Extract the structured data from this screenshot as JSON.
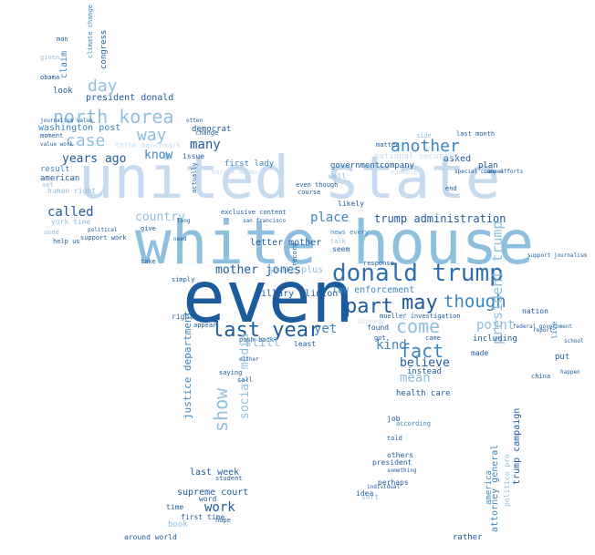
{
  "colors": {
    "background": "#ffffff",
    "dark": "#1c5b9e",
    "mid": "#3a86c0",
    "light": "#8fbfdf",
    "pale": "#c6dbef"
  },
  "words": [
    {
      "text": "white house",
      "color": "#8fbfdf"
    },
    {
      "text": "united state",
      "color": "#c6dbef"
    },
    {
      "text": "even",
      "color": "#1c5b9e"
    },
    {
      "text": "donald trump",
      "color": "#2f6fae"
    },
    {
      "text": "north korea",
      "color": "#8fbfdf"
    },
    {
      "text": "last year",
      "color": "#1c5b9e"
    },
    {
      "text": "part",
      "color": "#1c5b9e"
    },
    {
      "text": "may",
      "color": "#1c5b9e"
    },
    {
      "text": "though",
      "color": "#3a86c0"
    },
    {
      "text": "come",
      "color": "#8fbfdf"
    },
    {
      "text": "fact",
      "color": "#3a86c0"
    },
    {
      "text": "another",
      "color": "#3a86c0"
    },
    {
      "text": "way",
      "color": "#8fbfdf"
    },
    {
      "text": "case",
      "color": "#8fbfdf"
    },
    {
      "text": "day",
      "color": "#8fbfdf"
    },
    {
      "text": "show",
      "color": "#8fbfdf"
    },
    {
      "text": "trump administration",
      "color": "#1c5b9e"
    },
    {
      "text": "president trump",
      "color": "#8fbfdf"
    },
    {
      "text": "years ago",
      "color": "#1c5b9e"
    },
    {
      "text": "called",
      "color": "#1c5b9e"
    },
    {
      "text": "country",
      "color": "#8fbfdf"
    },
    {
      "text": "know",
      "color": "#3a86c0"
    },
    {
      "text": "many",
      "color": "#1c5b9e"
    },
    {
      "text": "mother jones",
      "color": "#1c5b9e"
    },
    {
      "text": "place",
      "color": "#3a86c0"
    },
    {
      "text": "yet",
      "color": "#3a86c0"
    },
    {
      "text": "kind",
      "color": "#3a86c0"
    },
    {
      "text": "believe",
      "color": "#1c5b9e"
    },
    {
      "text": "mean",
      "color": "#8fbfdf"
    },
    {
      "text": "point",
      "color": "#8fbfdf"
    },
    {
      "text": "work",
      "color": "#1c5b9e"
    },
    {
      "text": "still",
      "color": "#8fbfdf"
    },
    {
      "text": "social media",
      "color": "#8fbfdf"
    },
    {
      "text": "justice department",
      "color": "#3a86c0"
    },
    {
      "text": "supreme court",
      "color": "#1c5b9e"
    },
    {
      "text": "last week",
      "color": "#1c5b9e"
    },
    {
      "text": "president donald",
      "color": "#1c5b9e"
    },
    {
      "text": "washington post",
      "color": "#3a86c0"
    },
    {
      "text": "american",
      "color": "#1c5b9e"
    },
    {
      "text": "result",
      "color": "#3a86c0"
    },
    {
      "text": "hillary clinton",
      "color": "#1c5b9e"
    },
    {
      "text": "letter mother",
      "color": "#1c5b9e"
    },
    {
      "text": "law enforcement",
      "color": "#3a86c0"
    },
    {
      "text": "state plus",
      "color": "#8fbfdf"
    },
    {
      "text": "first lady",
      "color": "#3a86c0"
    },
    {
      "text": "government",
      "color": "#1c5b9e"
    },
    {
      "text": "company",
      "color": "#1c5b9e"
    },
    {
      "text": "asked",
      "color": "#1c5b9e"
    },
    {
      "text": "plan",
      "color": "#1c5b9e"
    },
    {
      "text": "national security",
      "color": "#c6dbef"
    },
    {
      "text": "trump campaign",
      "color": "#1c5b9e"
    },
    {
      "text": "attorney general",
      "color": "#3a86c0"
    },
    {
      "text": "health care",
      "color": "#1c5b9e"
    },
    {
      "text": "including",
      "color": "#1c5b9e"
    },
    {
      "text": "made",
      "color": "#1c5b9e"
    },
    {
      "text": "nation",
      "color": "#1c5b9e"
    },
    {
      "text": "put",
      "color": "#1c5b9e"
    },
    {
      "text": "live",
      "color": "#3a86c0"
    },
    {
      "text": "instead",
      "color": "#1c5b9e"
    },
    {
      "text": "mueller investigation",
      "color": "#1c5b9e"
    },
    {
      "text": "around world",
      "color": "#1c5b9e"
    },
    {
      "text": "first time",
      "color": "#1c5b9e"
    },
    {
      "text": "book",
      "color": "#8fbfdf"
    },
    {
      "text": "word",
      "color": "#1c5b9e"
    },
    {
      "text": "time",
      "color": "#1c5b9e"
    },
    {
      "text": "rather",
      "color": "#1c5b9e"
    },
    {
      "text": "others",
      "color": "#1c5b9e"
    },
    {
      "text": "president",
      "color": "#1c5b9e"
    },
    {
      "text": "perhaps",
      "color": "#1c5b9e"
    },
    {
      "text": "idea",
      "color": "#1c5b9e"
    },
    {
      "text": "sort",
      "color": "#8fbfdf"
    },
    {
      "text": "job",
      "color": "#1c5b9e"
    },
    {
      "text": "according",
      "color": "#3a86c0"
    },
    {
      "text": "found",
      "color": "#1c5b9e"
    },
    {
      "text": "got",
      "color": "#1c5b9e"
    },
    {
      "text": "came",
      "color": "#1c5b9e"
    },
    {
      "text": "least",
      "color": "#1c5b9e"
    },
    {
      "text": "right",
      "color": "#1c5b9e"
    },
    {
      "text": "simply",
      "color": "#1c5b9e"
    },
    {
      "text": "appear",
      "color": "#1c5b9e"
    },
    {
      "text": "take",
      "color": "#1c5b9e"
    },
    {
      "text": "give",
      "color": "#1c5b9e"
    },
    {
      "text": "saying",
      "color": "#1c5b9e"
    },
    {
      "text": "student",
      "color": "#1c5b9e"
    },
    {
      "text": "hope",
      "color": "#1c5b9e"
    },
    {
      "text": "york time",
      "color": "#8fbfdf"
    },
    {
      "text": "used",
      "color": "#8fbfdf"
    },
    {
      "text": "human right",
      "color": "#8fbfdf"
    },
    {
      "text": "support work",
      "color": "#1c5b9e"
    },
    {
      "text": "think benchmark",
      "color": "#c6dbef"
    },
    {
      "text": "issue",
      "color": "#1c5b9e"
    },
    {
      "text": "democrat",
      "color": "#1c5b9e"
    },
    {
      "text": "change",
      "color": "#1c5b9e"
    },
    {
      "text": "look",
      "color": "#1c5b9e"
    },
    {
      "text": "claim",
      "color": "#3a86c0"
    },
    {
      "text": "congress",
      "color": "#1c5b9e"
    },
    {
      "text": "climate change",
      "color": "#3a86c0"
    },
    {
      "text": "obama",
      "color": "#1c5b9e"
    },
    {
      "text": "man",
      "color": "#1c5b9e"
    },
    {
      "text": "given",
      "color": "#8fbfdf"
    },
    {
      "text": "well",
      "color": "#8fbfdf"
    },
    {
      "text": "even though",
      "color": "#1c5b9e"
    },
    {
      "text": "course",
      "color": "#1c5b9e"
    },
    {
      "text": "likely",
      "color": "#1c5b9e"
    },
    {
      "text": "seem",
      "color": "#1c5b9e"
    },
    {
      "text": "news every",
      "color": "#3a86c0"
    },
    {
      "text": "talk",
      "color": "#8fbfdf"
    },
    {
      "text": "matter",
      "color": "#1c5b9e"
    },
    {
      "text": "side",
      "color": "#8fbfdf"
    },
    {
      "text": "last month",
      "color": "#1c5b9e"
    },
    {
      "text": "end",
      "color": "#1c5b9e"
    },
    {
      "text": "support journalism",
      "color": "#1c5b9e"
    },
    {
      "text": "china",
      "color": "#1c5b9e"
    },
    {
      "text": "told",
      "color": "#1c5b9e"
    },
    {
      "text": "individual",
      "color": "#1c5b9e"
    },
    {
      "text": "something",
      "color": "#1c5b9e"
    },
    {
      "text": "america",
      "color": "#3a86c0"
    },
    {
      "text": "politico pro",
      "color": "#8fbfdf"
    },
    {
      "text": "response",
      "color": "#1c5b9e"
    },
    {
      "text": "call",
      "color": "#1c5b9e"
    },
    {
      "text": "push back",
      "color": "#1c5b9e"
    },
    {
      "text": "either",
      "color": "#1c5b9e"
    },
    {
      "text": "record",
      "color": "#1c5b9e"
    },
    {
      "text": "exclusive content",
      "color": "#1c5b9e"
    },
    {
      "text": "barack obama",
      "color": "#c6dbef"
    },
    {
      "text": "san francisco",
      "color": "#1c5b9e"
    },
    {
      "text": "actually",
      "color": "#1c5b9e"
    },
    {
      "text": "long",
      "color": "#1c5b9e"
    },
    {
      "text": "need",
      "color": "#1c5b9e"
    },
    {
      "text": "political",
      "color": "#1c5b9e"
    },
    {
      "text": "help us",
      "color": "#1c5b9e"
    },
    {
      "text": "set",
      "color": "#8fbfdf"
    },
    {
      "text": "moment",
      "color": "#1c5b9e"
    },
    {
      "text": "journalism value",
      "color": "#1c5b9e"
    },
    {
      "text": "value work",
      "color": "#1c5b9e"
    },
    {
      "text": "otten",
      "color": "#1c5b9e"
    },
    {
      "text": "already",
      "color": "#c6dbef"
    },
    {
      "text": "example",
      "color": "#c6dbef"
    },
    {
      "text": "special counsel",
      "color": "#1c5b9e"
    },
    {
      "text": "camp efforts",
      "color": "#1c5b9e"
    },
    {
      "text": "federal government",
      "color": "#1c5b9e"
    },
    {
      "text": "report",
      "color": "#1c5b9e"
    },
    {
      "text": "school",
      "color": "#1c5b9e"
    },
    {
      "text": "happen",
      "color": "#1c5b9e"
    }
  ]
}
